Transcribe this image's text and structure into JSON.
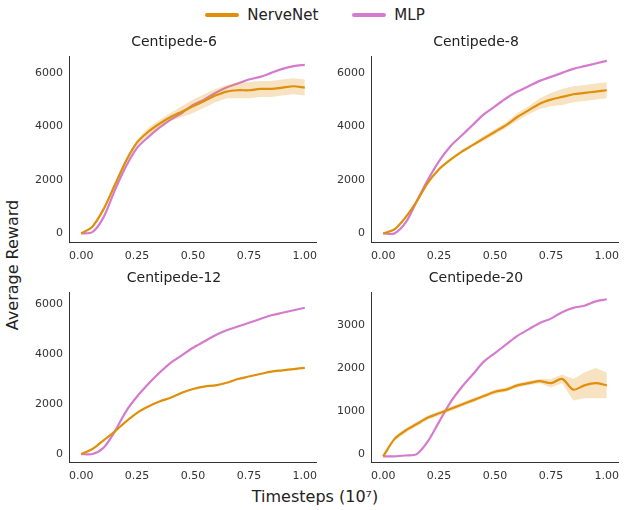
{
  "figure": {
    "x_label": "Timesteps (10⁷)",
    "y_label": "Average Reward",
    "legend": "top"
  },
  "chart_data": [
    {
      "type": "line",
      "title": "Centipede-6",
      "grid": false,
      "x": [
        0,
        0.05,
        0.1,
        0.15,
        0.2,
        0.25,
        0.3,
        0.35,
        0.4,
        0.45,
        0.5,
        0.55,
        0.6,
        0.65,
        0.7,
        0.75,
        0.8,
        0.85,
        0.9,
        0.95,
        1
      ],
      "xlim": [
        -0.05,
        1.05
      ],
      "xticks": [
        {
          "value": 0,
          "label": "0.00"
        },
        {
          "value": 0.25,
          "label": "0.25"
        },
        {
          "value": 0.5,
          "label": "0.50"
        },
        {
          "value": 0.75,
          "label": "0.75"
        },
        {
          "value": 1,
          "label": "1.00"
        }
      ],
      "ylim": [
        -350,
        6600
      ],
      "yticks": [
        0,
        2000,
        4000,
        6000
      ],
      "series": [
        {
          "name": "NerveNet",
          "color": "#df8f0a",
          "values": [
            0,
            250,
            900,
            1800,
            2700,
            3400,
            3800,
            4100,
            4350,
            4550,
            4750,
            4950,
            5150,
            5300,
            5350,
            5350,
            5400,
            5400,
            5450,
            5500,
            5450
          ],
          "lower": [
            0,
            200,
            800,
            1700,
            2600,
            3300,
            3650,
            3950,
            4200,
            4350,
            4500,
            4700,
            4900,
            5050,
            5050,
            5050,
            5100,
            5100,
            5150,
            5200,
            5150
          ],
          "upper": [
            0,
            300,
            1000,
            1900,
            2800,
            3500,
            3950,
            4250,
            4500,
            4750,
            5000,
            5200,
            5400,
            5550,
            5650,
            5650,
            5700,
            5700,
            5750,
            5800,
            5750
          ]
        },
        {
          "name": "MLP",
          "color": "#d47bcf",
          "values": [
            0,
            50,
            600,
            1600,
            2500,
            3200,
            3600,
            3950,
            4250,
            4500,
            4800,
            5000,
            5250,
            5450,
            5600,
            5750,
            5850,
            6000,
            6150,
            6250,
            6300
          ]
        }
      ]
    },
    {
      "type": "line",
      "title": "Centipede-8",
      "grid": false,
      "x": [
        0,
        0.05,
        0.1,
        0.15,
        0.2,
        0.25,
        0.3,
        0.35,
        0.4,
        0.45,
        0.5,
        0.55,
        0.6,
        0.65,
        0.7,
        0.75,
        0.8,
        0.85,
        0.9,
        0.95,
        1
      ],
      "xlim": [
        -0.05,
        1.05
      ],
      "xticks": [
        {
          "value": 0,
          "label": "0.00"
        },
        {
          "value": 0.25,
          "label": "0.25"
        },
        {
          "value": 0.5,
          "label": "0.50"
        },
        {
          "value": 0.75,
          "label": "0.75"
        },
        {
          "value": 1,
          "label": "1.00"
        }
      ],
      "ylim": [
        -350,
        6600
      ],
      "yticks": [
        0,
        2000,
        4000,
        6000
      ],
      "series": [
        {
          "name": "NerveNet",
          "color": "#df8f0a",
          "values": [
            0,
            150,
            600,
            1200,
            1900,
            2400,
            2750,
            3050,
            3300,
            3550,
            3800,
            4050,
            4350,
            4600,
            4850,
            5000,
            5100,
            5200,
            5250,
            5300,
            5350
          ],
          "lower": [
            0,
            100,
            550,
            1150,
            1850,
            2350,
            2700,
            3000,
            3250,
            3450,
            3700,
            3950,
            4200,
            4450,
            4650,
            4750,
            4800,
            4900,
            4950,
            5000,
            5050
          ],
          "upper": [
            0,
            200,
            650,
            1250,
            1950,
            2450,
            2800,
            3100,
            3350,
            3650,
            3900,
            4150,
            4500,
            4750,
            5050,
            5250,
            5400,
            5500,
            5550,
            5600,
            5650
          ]
        },
        {
          "name": "MLP",
          "color": "#d47bcf",
          "values": [
            0,
            0,
            400,
            1200,
            2000,
            2700,
            3250,
            3650,
            4050,
            4450,
            4750,
            5050,
            5300,
            5500,
            5700,
            5850,
            6000,
            6150,
            6250,
            6350,
            6450
          ]
        }
      ]
    },
    {
      "type": "line",
      "title": "Centipede-12",
      "grid": false,
      "x": [
        0,
        0.05,
        0.1,
        0.15,
        0.2,
        0.25,
        0.3,
        0.35,
        0.4,
        0.45,
        0.5,
        0.55,
        0.6,
        0.65,
        0.7,
        0.75,
        0.8,
        0.85,
        0.9,
        0.95,
        1
      ],
      "xlim": [
        -0.05,
        1.05
      ],
      "xticks": [
        {
          "value": 0,
          "label": "0.00"
        },
        {
          "value": 0.25,
          "label": "0.25"
        },
        {
          "value": 0.5,
          "label": "0.50"
        },
        {
          "value": 0.75,
          "label": "0.75"
        },
        {
          "value": 1,
          "label": "1.00"
        }
      ],
      "ylim": [
        -350,
        6450
      ],
      "yticks": [
        0,
        2000,
        4000,
        6000
      ],
      "series": [
        {
          "name": "NerveNet",
          "color": "#df8f0a",
          "values": [
            0,
            200,
            550,
            900,
            1300,
            1650,
            1900,
            2100,
            2250,
            2450,
            2600,
            2700,
            2750,
            2850,
            3000,
            3100,
            3200,
            3300,
            3350,
            3400,
            3450
          ]
        },
        {
          "name": "MLP",
          "color": "#d47bcf",
          "values": [
            0,
            0,
            250,
            900,
            1700,
            2300,
            2800,
            3250,
            3650,
            3950,
            4250,
            4500,
            4750,
            4950,
            5100,
            5250,
            5400,
            5550,
            5650,
            5750,
            5850
          ]
        }
      ]
    },
    {
      "type": "line",
      "title": "Centipede-20",
      "grid": false,
      "x": [
        0,
        0.05,
        0.1,
        0.15,
        0.2,
        0.25,
        0.3,
        0.35,
        0.4,
        0.45,
        0.5,
        0.55,
        0.6,
        0.65,
        0.7,
        0.75,
        0.8,
        0.85,
        0.9,
        0.95,
        1
      ],
      "xlim": [
        -0.05,
        1.05
      ],
      "xticks": [
        {
          "value": 0,
          "label": "0.00"
        },
        {
          "value": 0.25,
          "label": "0.25"
        },
        {
          "value": 0.5,
          "label": "0.50"
        },
        {
          "value": 0.75,
          "label": "0.75"
        },
        {
          "value": 1,
          "label": "1.00"
        }
      ],
      "ylim": [
        -200,
        3750
      ],
      "yticks": [
        0,
        1000,
        2000,
        3000
      ],
      "series": [
        {
          "name": "NerveNet",
          "color": "#df8f0a",
          "values": [
            -50,
            350,
            550,
            700,
            850,
            950,
            1050,
            1150,
            1250,
            1350,
            1450,
            1500,
            1600,
            1650,
            1700,
            1650,
            1750,
            1500,
            1600,
            1650,
            1600
          ],
          "lower": [
            -50,
            300,
            500,
            650,
            800,
            900,
            1000,
            1100,
            1200,
            1300,
            1400,
            1450,
            1550,
            1600,
            1650,
            1550,
            1650,
            1250,
            1300,
            1300,
            1300
          ],
          "upper": [
            -50,
            400,
            600,
            750,
            900,
            1000,
            1100,
            1200,
            1300,
            1400,
            1500,
            1550,
            1650,
            1700,
            1750,
            1750,
            1850,
            1750,
            1900,
            2000,
            1900
          ]
        },
        {
          "name": "MLP",
          "color": "#d47bcf",
          "values": [
            -50,
            -50,
            -30,
            0,
            300,
            750,
            1200,
            1550,
            1850,
            2150,
            2350,
            2550,
            2750,
            2900,
            3050,
            3150,
            3300,
            3400,
            3450,
            3550,
            3600
          ]
        }
      ]
    }
  ]
}
